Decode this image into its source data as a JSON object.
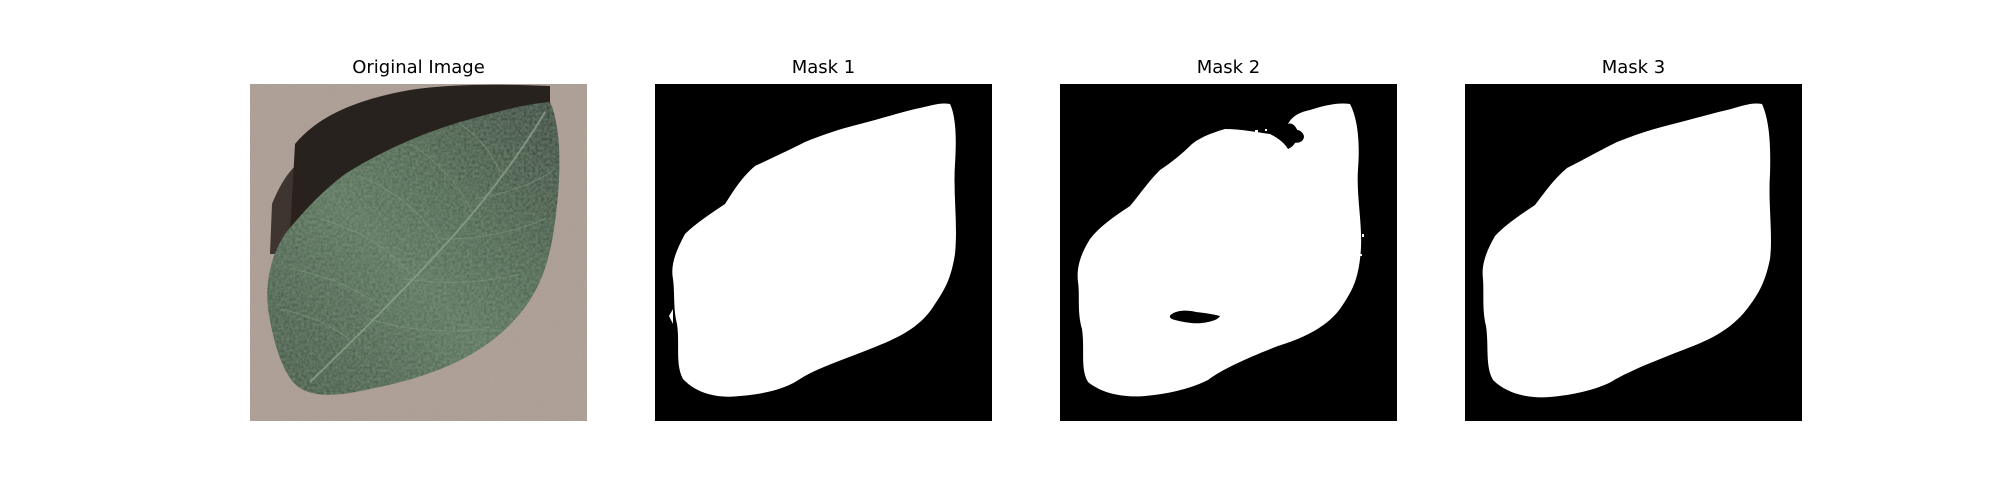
{
  "figure": {
    "panels": [
      {
        "title": "Original Image",
        "content": "leaf-photo"
      },
      {
        "title": "Mask 1",
        "content": "segmentation-mask"
      },
      {
        "title": "Mask 2",
        "content": "segmentation-mask"
      },
      {
        "title": "Mask 3",
        "content": "segmentation-mask"
      }
    ]
  },
  "colors": {
    "background": "#ffffff",
    "mask_foreground": "#ffffff",
    "mask_background": "#000000",
    "photo_background": "#a8998f",
    "leaf_dark": "#253f2b",
    "leaf_mid": "#3d5c42",
    "leaf_light": "#6c8a6d"
  }
}
